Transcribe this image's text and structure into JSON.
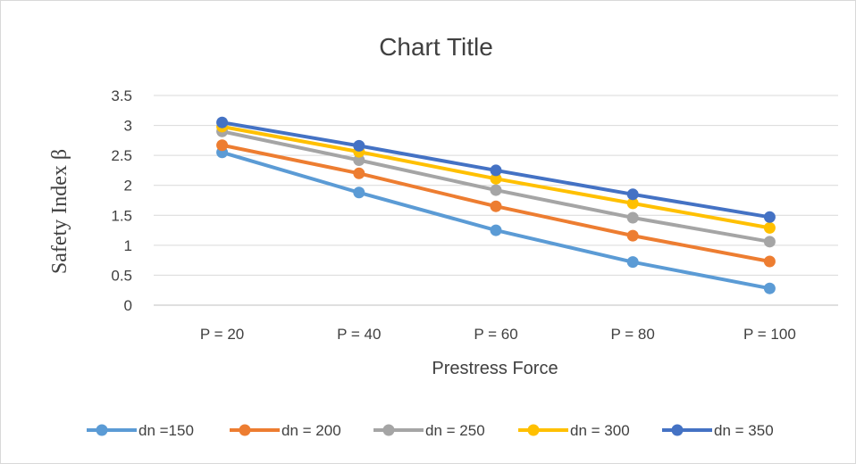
{
  "chart_data": {
    "type": "line",
    "title": "Chart Title",
    "xlabel": "Prestress Force",
    "ylabel": "Safety Index β",
    "categories": [
      "P = 20",
      "P = 40",
      "P = 60",
      "P = 80",
      "P = 100"
    ],
    "ylim": [
      0,
      3.5
    ],
    "yticks": [
      "0",
      "0.5",
      "1",
      "1.5",
      "2",
      "2.5",
      "3",
      "3.5"
    ],
    "grid": true,
    "legend_position": "bottom",
    "series": [
      {
        "name": "dn =150",
        "color": "#5B9BD5",
        "values": [
          2.55,
          1.88,
          1.25,
          0.72,
          0.28
        ]
      },
      {
        "name": "dn = 200",
        "color": "#ED7D31",
        "values": [
          2.67,
          2.2,
          1.65,
          1.16,
          0.73
        ]
      },
      {
        "name": "dn = 250",
        "color": "#A5A5A5",
        "values": [
          2.9,
          2.42,
          1.92,
          1.46,
          1.06
        ]
      },
      {
        "name": "dn = 300",
        "color": "#FFC000",
        "values": [
          2.98,
          2.56,
          2.11,
          1.7,
          1.29
        ]
      },
      {
        "name": "dn = 350",
        "color": "#4472C4",
        "values": [
          3.05,
          2.66,
          2.25,
          1.85,
          1.47
        ]
      }
    ]
  }
}
